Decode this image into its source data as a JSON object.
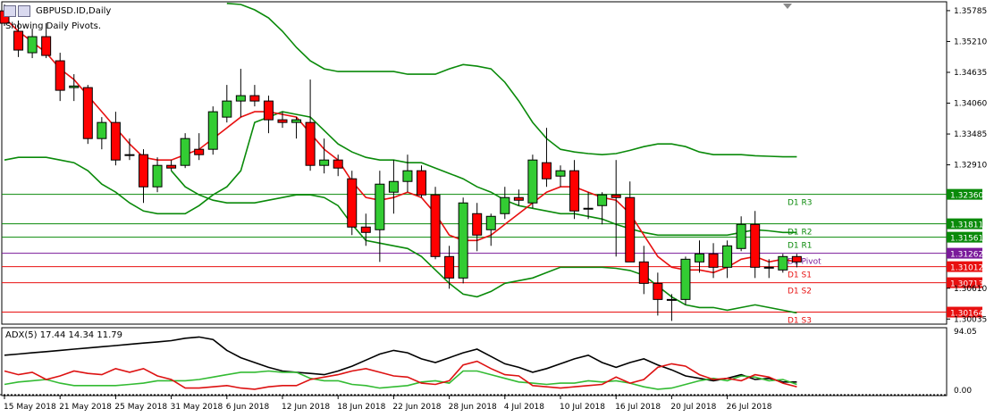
{
  "header": {
    "symbol_label": "GBPUSD.ID,Daily",
    "pivot_note": "Showing Daily Pivots."
  },
  "icons": {
    "window": "chart-window-icon",
    "scroll": "scroll-up-triangle-icon"
  },
  "colors": {
    "bull": "#33cc33",
    "bear": "#ff0000",
    "ma": "#e81010",
    "band": "#0a8a0a",
    "pivot": "#7a1a9a",
    "resist": "#0a8a0a",
    "support": "#e81010",
    "adx": "#000000",
    "plus_di": "#33bb33",
    "minus_di": "#dd1111"
  },
  "chart_data": [
    {
      "type": "candlestick",
      "symbol": "GBPUSD.ID",
      "timeframe": "Daily",
      "ylim": [
        1.2994,
        1.3595
      ],
      "y_ticks": [
        "1.35785",
        "1.35210",
        "1.34635",
        "1.34060",
        "1.33485",
        "1.32910",
        "1.32360",
        "1.31811",
        "1.31561",
        "1.31262",
        "1.31012",
        "1.30713",
        "1.30610",
        "1.30164",
        "1.30035"
      ],
      "x_ticks": [
        "15 May 2018",
        "21 May 2018",
        "25 May 2018",
        "31 May 2018",
        "6 Jun 2018",
        "12 Jun 2018",
        "18 Jun 2018",
        "22 Jun 2018",
        "28 Jun 2018",
        "4 Jul 2018",
        "10 Jul 2018",
        "16 Jul 2018",
        "20 Jul 2018",
        "26 Jul 2018"
      ],
      "x_tick_bars": [
        0,
        4,
        8,
        12,
        16,
        20,
        24,
        28,
        32,
        36,
        40,
        44,
        48,
        52
      ],
      "ohlc": [
        [
          1.3578,
          1.359,
          1.355,
          1.3555
        ],
        [
          1.354,
          1.356,
          1.3492,
          1.3505
        ],
        [
          1.35,
          1.3545,
          1.349,
          1.353
        ],
        [
          1.353,
          1.3555,
          1.349,
          1.3495
        ],
        [
          1.3485,
          1.35,
          1.341,
          1.343
        ],
        [
          1.3435,
          1.346,
          1.341,
          1.3438
        ],
        [
          1.3435,
          1.344,
          1.333,
          1.334
        ],
        [
          1.334,
          1.338,
          1.332,
          1.337
        ],
        [
          1.337,
          1.339,
          1.329,
          1.33
        ],
        [
          1.331,
          1.334,
          1.33,
          1.331
        ],
        [
          1.331,
          1.332,
          1.322,
          1.325
        ],
        [
          1.325,
          1.3305,
          1.324,
          1.329
        ],
        [
          1.329,
          1.33,
          1.328,
          1.3285
        ],
        [
          1.329,
          1.335,
          1.3285,
          1.334
        ],
        [
          1.332,
          1.335,
          1.33,
          1.331
        ],
        [
          1.332,
          1.34,
          1.331,
          1.339
        ],
        [
          1.338,
          1.344,
          1.337,
          1.341
        ],
        [
          1.341,
          1.347,
          1.338,
          1.342
        ],
        [
          1.342,
          1.344,
          1.34,
          1.341
        ],
        [
          1.341,
          1.342,
          1.335,
          1.3375
        ],
        [
          1.3375,
          1.339,
          1.336,
          1.337
        ],
        [
          1.337,
          1.338,
          1.334,
          1.3375
        ],
        [
          1.337,
          1.345,
          1.328,
          1.329
        ],
        [
          1.329,
          1.334,
          1.3275,
          1.33
        ],
        [
          1.33,
          1.331,
          1.327,
          1.3285
        ],
        [
          1.3265,
          1.328,
          1.316,
          1.3175
        ],
        [
          1.3175,
          1.32,
          1.314,
          1.3165
        ],
        [
          1.317,
          1.328,
          1.311,
          1.3255
        ],
        [
          1.324,
          1.33,
          1.32,
          1.326
        ],
        [
          1.326,
          1.331,
          1.324,
          1.328
        ],
        [
          1.328,
          1.329,
          1.323,
          1.3235
        ],
        [
          1.3235,
          1.325,
          1.3115,
          1.312
        ],
        [
          1.312,
          1.314,
          1.306,
          1.308
        ],
        [
          1.308,
          1.323,
          1.307,
          1.322
        ],
        [
          1.32,
          1.322,
          1.313,
          1.316
        ],
        [
          1.317,
          1.32,
          1.314,
          1.3195
        ],
        [
          1.32,
          1.325,
          1.319,
          1.323
        ],
        [
          1.323,
          1.3245,
          1.3215,
          1.3225
        ],
        [
          1.322,
          1.331,
          1.321,
          1.33
        ],
        [
          1.3295,
          1.336,
          1.325,
          1.3265
        ],
        [
          1.327,
          1.329,
          1.325,
          1.328
        ],
        [
          1.328,
          1.33,
          1.319,
          1.3205
        ],
        [
          1.321,
          1.324,
          1.319,
          1.321
        ],
        [
          1.3215,
          1.324,
          1.318,
          1.3235
        ],
        [
          1.3235,
          1.33,
          1.312,
          1.323
        ],
        [
          1.323,
          1.326,
          1.311,
          1.311
        ],
        [
          1.311,
          1.314,
          1.305,
          1.307
        ],
        [
          1.307,
          1.309,
          1.301,
          1.304
        ],
        [
          1.304,
          1.305,
          1.3,
          1.304
        ],
        [
          1.304,
          1.312,
          1.303,
          1.3115
        ],
        [
          1.311,
          1.315,
          1.309,
          1.3125
        ],
        [
          1.3125,
          1.3145,
          1.308,
          1.31
        ],
        [
          1.31,
          1.315,
          1.308,
          1.314
        ],
        [
          1.3135,
          1.3195,
          1.313,
          1.318
        ],
        [
          1.318,
          1.3205,
          1.308,
          1.31
        ],
        [
          1.31,
          1.3115,
          1.308,
          1.31
        ],
        [
          1.3095,
          1.3125,
          1.309,
          1.312
        ],
        [
          1.312,
          1.3125,
          1.31,
          1.311
        ]
      ],
      "ma": [
        1.3565,
        1.354,
        1.352,
        1.35,
        1.347,
        1.345,
        1.342,
        1.339,
        1.336,
        1.333,
        1.3305,
        1.33,
        1.33,
        1.331,
        1.332,
        1.334,
        1.336,
        1.338,
        1.339,
        1.339,
        1.3385,
        1.338,
        1.335,
        1.332,
        1.33,
        1.326,
        1.323,
        1.3225,
        1.323,
        1.324,
        1.323,
        1.32,
        1.316,
        1.315,
        1.315,
        1.316,
        1.318,
        1.32,
        1.322,
        1.324,
        1.325,
        1.325,
        1.324,
        1.323,
        1.3225,
        1.32,
        1.316,
        1.312,
        1.31,
        1.3095,
        1.3095,
        1.309,
        1.31,
        1.3115,
        1.312,
        1.311,
        1.3115,
        1.311
      ],
      "band_upper": [
        null,
        null,
        null,
        null,
        null,
        null,
        null,
        null,
        null,
        null,
        null,
        null,
        null,
        null,
        null,
        null,
        1.3592,
        1.359,
        1.358,
        1.3565,
        1.354,
        1.351,
        1.3485,
        1.347,
        1.3465,
        1.3465,
        1.3465,
        1.3465,
        1.3465,
        1.346,
        1.346,
        1.346,
        1.347,
        1.3478,
        1.3475,
        1.347,
        1.3445,
        1.341,
        1.337,
        1.334,
        1.332,
        1.3315,
        1.3312,
        1.331,
        1.3312,
        1.3318,
        1.3325,
        1.333,
        1.333,
        1.3325,
        1.3315,
        1.331,
        1.331,
        1.331,
        1.3308,
        1.3307,
        1.3306,
        1.3306
      ],
      "band_middle": [
        1.33,
        1.3305,
        1.3305,
        1.3305,
        1.33,
        1.3295,
        1.328,
        1.3255,
        1.324,
        1.322,
        1.3205,
        1.32,
        1.32,
        1.32,
        1.3215,
        1.3235,
        1.325,
        1.328,
        1.337,
        1.338,
        1.339,
        1.3385,
        1.338,
        1.3355,
        1.333,
        1.3315,
        1.3305,
        1.33,
        1.33,
        1.3295,
        1.3295,
        1.3285,
        1.3275,
        1.3265,
        1.325,
        1.324,
        1.3225,
        1.3215,
        1.321,
        1.3205,
        1.32,
        1.32,
        1.3195,
        1.319,
        1.318,
        1.3172,
        1.3165,
        1.316,
        1.316,
        1.316,
        1.316,
        1.316,
        1.316,
        1.3165,
        1.317,
        1.3168,
        1.3165,
        1.3165
      ],
      "band_lower": [
        null,
        null,
        null,
        null,
        null,
        null,
        null,
        null,
        null,
        null,
        null,
        null,
        1.328,
        1.325,
        1.3235,
        1.3225,
        1.322,
        1.322,
        1.322,
        1.3225,
        1.323,
        1.3235,
        1.3235,
        1.323,
        1.3215,
        1.318,
        1.315,
        1.3145,
        1.314,
        1.3135,
        1.312,
        1.3095,
        1.307,
        1.305,
        1.3045,
        1.3055,
        1.307,
        1.3075,
        1.308,
        1.309,
        1.31,
        1.31,
        1.31,
        1.31,
        1.3098,
        1.3094,
        1.3085,
        1.3065,
        1.3045,
        1.303,
        1.3025,
        1.3025,
        1.302,
        1.3025,
        1.303,
        1.3025,
        1.302,
        1.3015
      ],
      "pivots": [
        {
          "label": "D1 R3",
          "value": 1.3236,
          "value_text": "1.32360",
          "kind": "resist"
        },
        {
          "label": "D1 R2",
          "value": 1.31811,
          "value_text": "1.31811",
          "kind": "resist"
        },
        {
          "label": "D1 R1",
          "value": 1.31561,
          "value_text": "1.31561",
          "kind": "resist"
        },
        {
          "label": "D1 Pivot",
          "value": 1.31262,
          "value_text": "1.31262",
          "kind": "pivot"
        },
        {
          "label": "D1 S1",
          "value": 1.31012,
          "value_text": "1.31012",
          "kind": "support"
        },
        {
          "label": "D1 S2",
          "value": 1.30713,
          "value_text": "1.30713",
          "kind": "support"
        },
        {
          "label": "D1 S3",
          "value": 1.30164,
          "value_text": "1.30164",
          "kind": "support"
        }
      ]
    },
    {
      "type": "line",
      "title": "ADX(5) 17.44 14.34 11.79",
      "ylim": [
        0,
        100
      ],
      "y_ticks": [
        "94.05",
        "0.00"
      ],
      "series": [
        {
          "name": "ADX",
          "color_key": "adx",
          "values": [
            62,
            64,
            66,
            68,
            70,
            72,
            74,
            76,
            78,
            80,
            82,
            84,
            86,
            90,
            92,
            88,
            70,
            58,
            50,
            42,
            36,
            34,
            32,
            30,
            36,
            44,
            54,
            64,
            70,
            66,
            56,
            50,
            58,
            66,
            72,
            60,
            48,
            42,
            34,
            40,
            48,
            56,
            62,
            50,
            42,
            50,
            56,
            46,
            38,
            28,
            24,
            20,
            24,
            30,
            22,
            24,
            18,
            18
          ]
        },
        {
          "name": "+DI",
          "color_key": "plus_di",
          "values": [
            14,
            18,
            20,
            22,
            16,
            12,
            12,
            12,
            12,
            14,
            16,
            20,
            20,
            20,
            22,
            26,
            30,
            34,
            34,
            36,
            34,
            34,
            24,
            20,
            20,
            14,
            12,
            8,
            10,
            12,
            18,
            20,
            16,
            36,
            36,
            30,
            24,
            18,
            16,
            14,
            16,
            16,
            20,
            18,
            20,
            16,
            10,
            6,
            8,
            14,
            20,
            24,
            20,
            28,
            26,
            20,
            22,
            14
          ]
        },
        {
          "name": "-DI",
          "color_key": "minus_di",
          "values": [
            36,
            30,
            34,
            22,
            28,
            36,
            32,
            30,
            40,
            34,
            40,
            28,
            22,
            8,
            8,
            10,
            12,
            8,
            6,
            10,
            12,
            12,
            22,
            26,
            30,
            36,
            40,
            34,
            28,
            26,
            16,
            14,
            20,
            46,
            52,
            40,
            30,
            28,
            12,
            10,
            8,
            10,
            12,
            14,
            26,
            16,
            22,
            42,
            48,
            44,
            30,
            22,
            24,
            20,
            30,
            26,
            16,
            10
          ]
        }
      ]
    }
  ]
}
